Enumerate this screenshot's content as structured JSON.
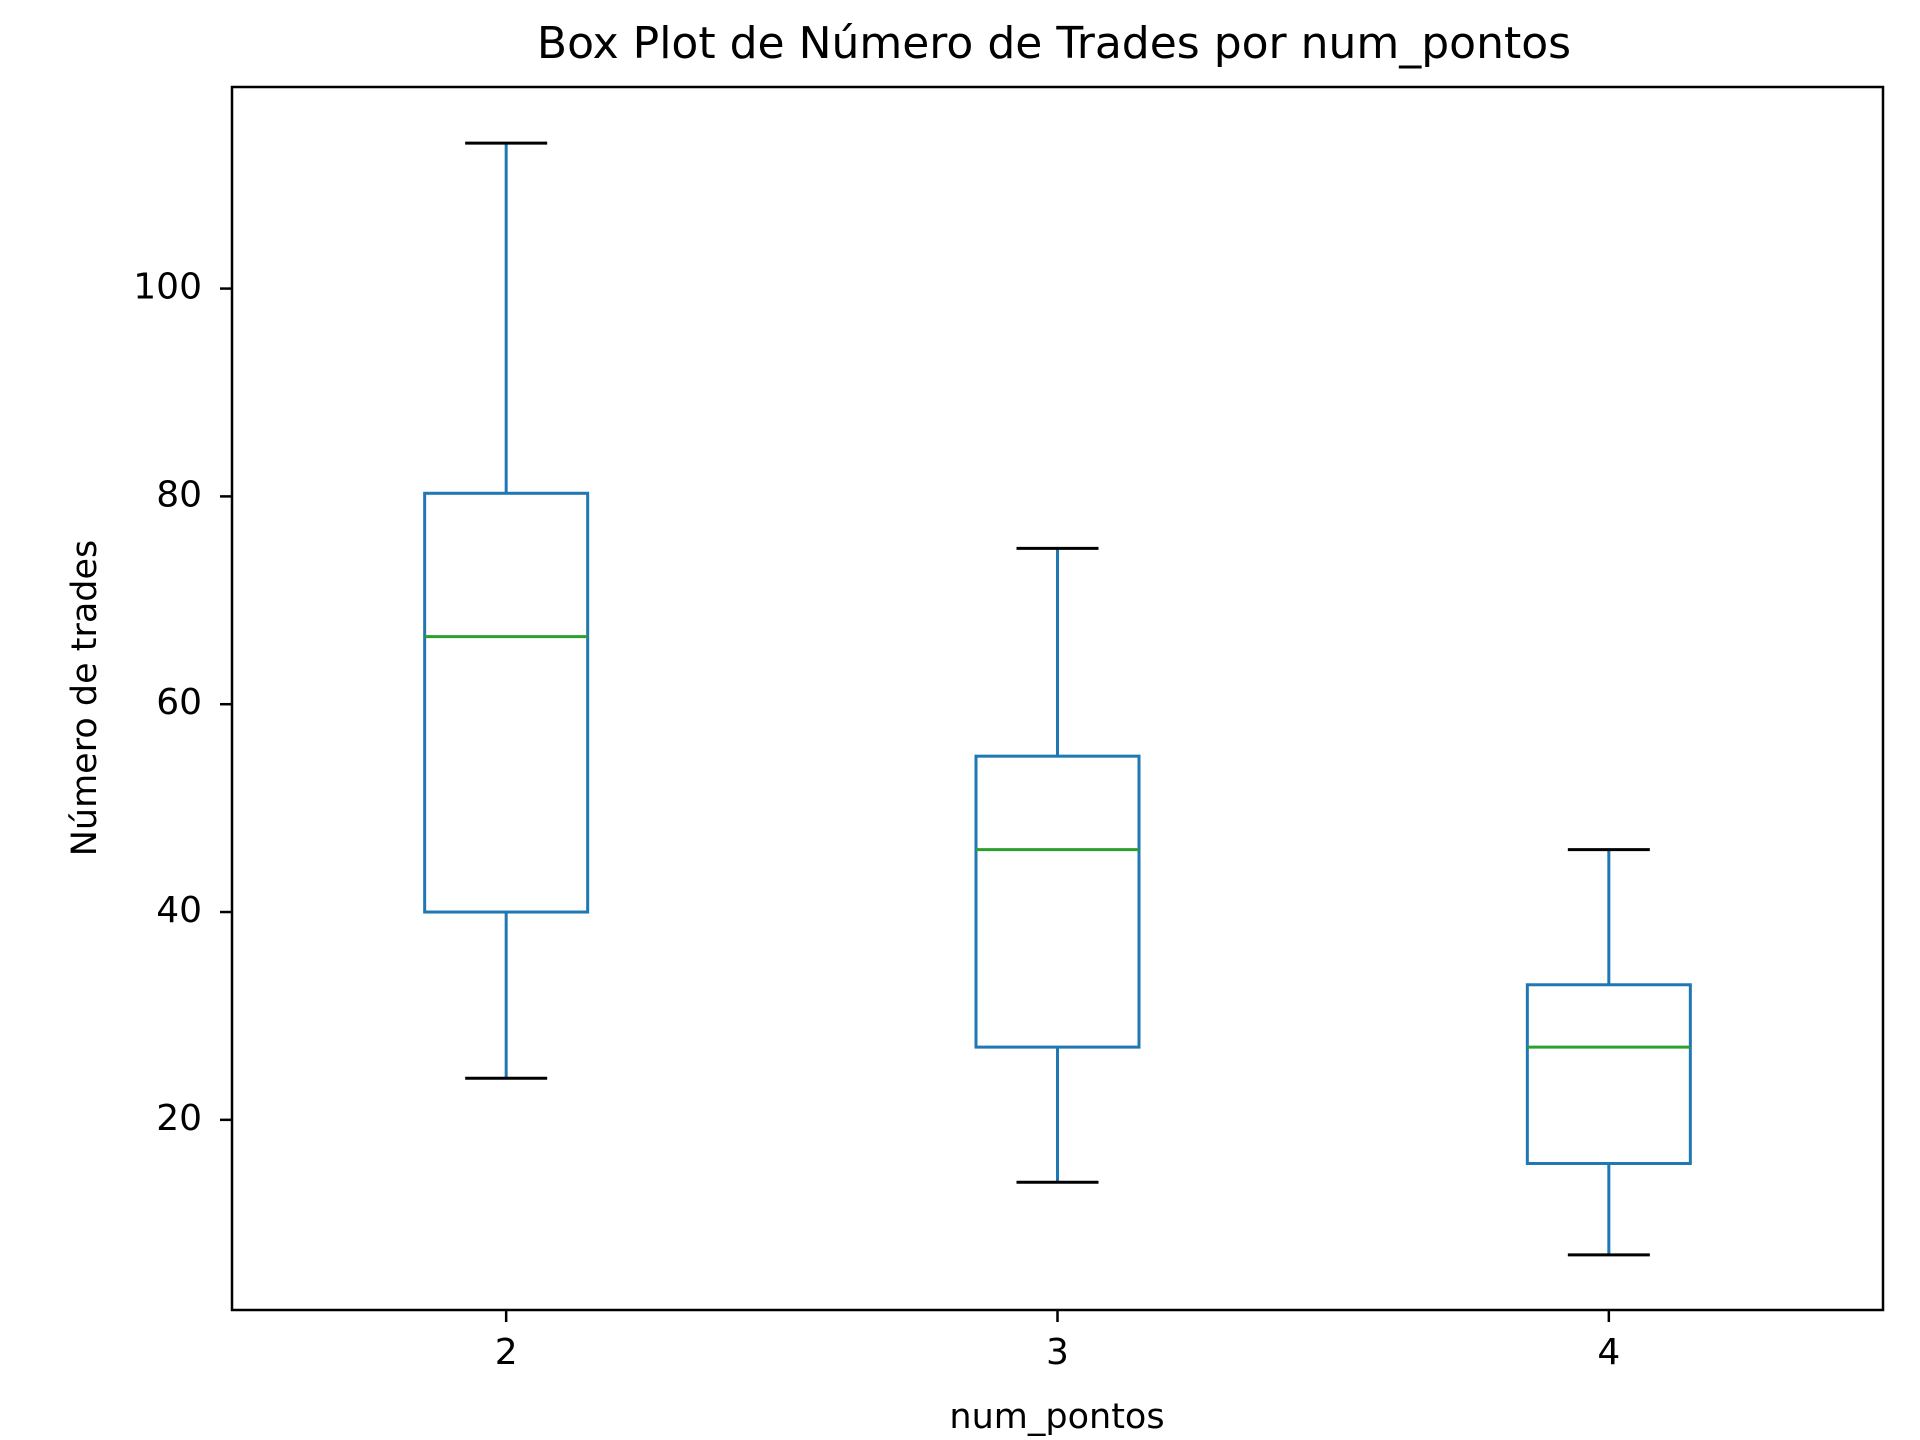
{
  "chart_data": {
    "type": "boxplot",
    "title": "Box Plot de Número de Trades por num_pontos",
    "xlabel": "num_pontos",
    "ylabel": "Número de trades",
    "categories": [
      "2",
      "3",
      "4"
    ],
    "boxes": [
      {
        "category": "2",
        "whisker_low": 24,
        "q1": 40,
        "median": 66.5,
        "q3": 80.3,
        "whisker_high": 114
      },
      {
        "category": "3",
        "whisker_low": 14,
        "q1": 27,
        "median": 46,
        "q3": 55,
        "whisker_high": 75
      },
      {
        "category": "4",
        "whisker_low": 7,
        "q1": 15.8,
        "median": 27,
        "q3": 33,
        "whisker_high": 46
      }
    ],
    "yticks": [
      20,
      40,
      60,
      80,
      100
    ],
    "ylim": [
      1.7,
      119.4
    ],
    "grid": false,
    "colors": {
      "box": "#1f77b4",
      "median": "#2ca02c",
      "cap": "#000000",
      "frame": "#000000"
    }
  }
}
